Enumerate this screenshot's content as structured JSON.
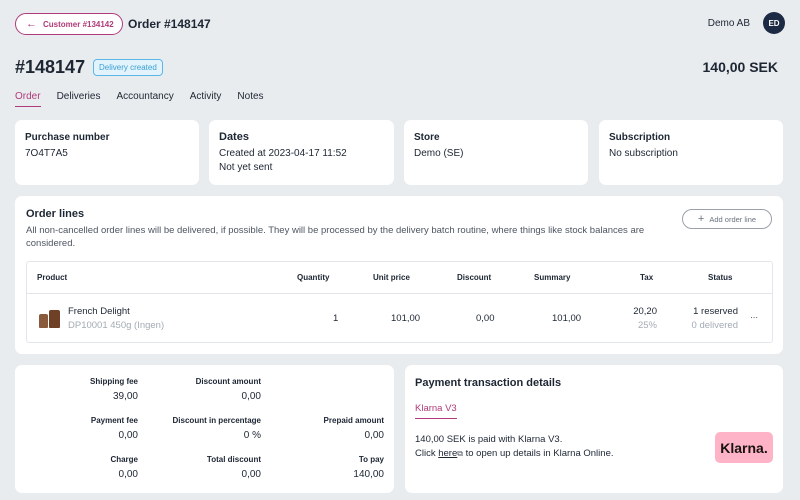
{
  "topbar": {
    "back_label": "Customer #134142",
    "order_title": "Order #148147",
    "company": "Demo AB",
    "avatar_initials": "ED"
  },
  "header": {
    "order_number": "#148147",
    "status": "Delivery created",
    "total": "140,00 SEK"
  },
  "tabs": [
    {
      "label": "Order",
      "active": true
    },
    {
      "label": "Deliveries"
    },
    {
      "label": "Accountancy"
    },
    {
      "label": "Activity"
    },
    {
      "label": "Notes"
    }
  ],
  "info_cards": {
    "purchase": {
      "title": "Purchase number",
      "value": "7O4T7A5"
    },
    "dates": {
      "title": "Dates",
      "created": "Created at 2023-04-17 11:52",
      "sent": "Not yet sent"
    },
    "store": {
      "title": "Store",
      "value": "Demo (SE)"
    },
    "subscription": {
      "title": "Subscription",
      "value": "No subscription"
    }
  },
  "order_lines": {
    "title": "Order lines",
    "description": "All non-cancelled order lines will be delivered, if possible. They will be processed by the delivery batch routine, where things like stock balances are considered.",
    "add_button": "Add order line",
    "columns": [
      "Product",
      "Quantity",
      "Unit price",
      "Discount",
      "Summary",
      "Tax",
      "Status"
    ],
    "rows": [
      {
        "product": "French Delight",
        "sku": "DP10001 450g (Ingen)",
        "quantity": "1",
        "unit_price": "101,00",
        "discount": "0,00",
        "summary": "101,00",
        "tax": "20,20",
        "tax_rate": "25%",
        "status": "1 reserved",
        "status_sub": "0 delivered",
        "more": "..."
      }
    ]
  },
  "fees": {
    "shipping_fee": {
      "label": "Shipping fee",
      "value": "39,00"
    },
    "discount_amount": {
      "label": "Discount amount",
      "value": "0,00"
    },
    "payment_fee": {
      "label": "Payment fee",
      "value": "0,00"
    },
    "discount_percentage": {
      "label": "Discount in percentage",
      "value": "0 %"
    },
    "prepaid_amount": {
      "label": "Prepaid amount",
      "value": "0,00"
    },
    "charge": {
      "label": "Charge",
      "value": "0,00"
    },
    "total_discount": {
      "label": "Total discount",
      "value": "0,00"
    },
    "to_pay": {
      "label": "To pay",
      "value": "140,00"
    }
  },
  "payment": {
    "title": "Payment transaction details",
    "tab": "Klarna V3",
    "line1": "140,00 SEK is paid with Klarna V3.",
    "line2_prefix": "Click",
    "link": "here",
    "line2_suffix": "to open up details in Klarna Online.",
    "logo_text": "Klarna."
  },
  "colors": {
    "accent": "#b03a7a",
    "badge": "#3a9fd3",
    "background": "#e9ecef",
    "klarna_pink": "#ffb3c7"
  }
}
